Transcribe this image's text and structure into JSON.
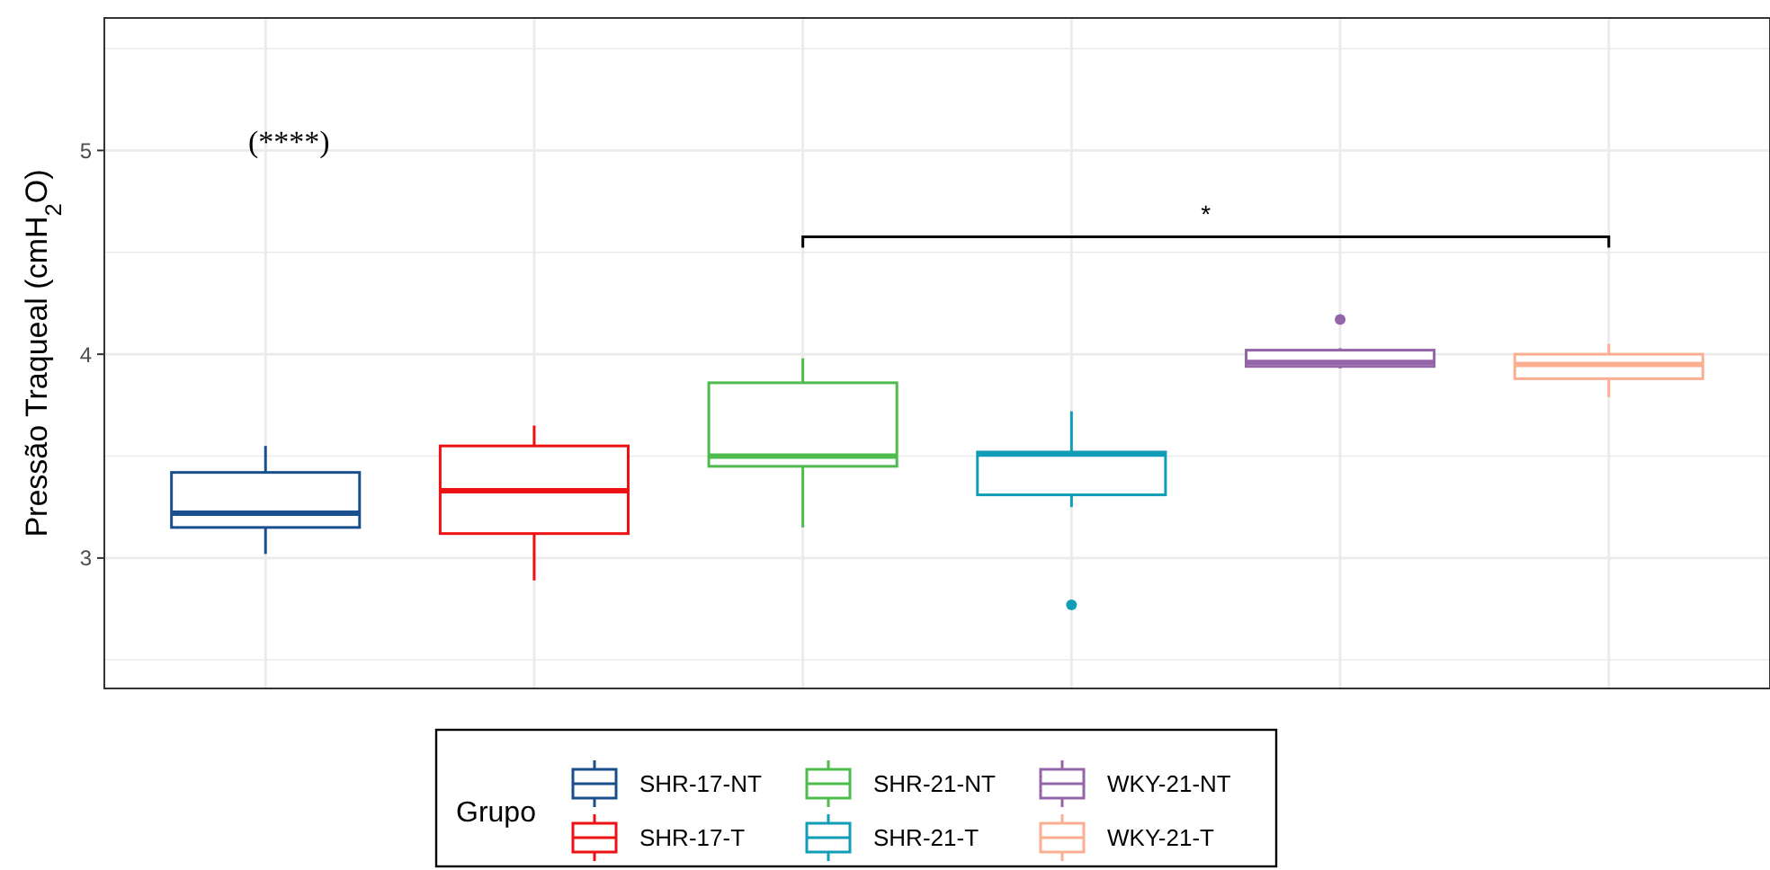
{
  "chart_data": {
    "type": "box",
    "ylabel": "Pressão Traqueal (cmH$_{2}$O)",
    "legend_title": "Grupo",
    "legend": "bottom",
    "grid": true,
    "tick_labels": "y",
    "categories": [
      null,
      null,
      null,
      null,
      null,
      null
    ],
    "ylim": [
      2.36,
      5.65
    ],
    "yticks": [
      {
        "value": 2.5,
        "label": null
      },
      3,
      {
        "value": 3.5,
        "label": null
      },
      4,
      {
        "value": 4.5,
        "label": null
      },
      5,
      {
        "value": 5.5,
        "label": null
      }
    ],
    "series": [
      {
        "name": "SHR-17-NT",
        "color": "#1a4f8e",
        "boxes": [
          {
            "low": 3.02,
            "q1": 3.15,
            "median": 3.22,
            "q3": 3.42,
            "high": 3.55
          },
          null,
          null,
          null,
          null,
          null
        ]
      },
      {
        "name": "SHR-17-T",
        "color": "#ee1111",
        "boxes": [
          null,
          {
            "low": 2.89,
            "q1": 3.12,
            "median": 3.33,
            "q3": 3.55,
            "high": 3.65
          },
          null,
          null,
          null,
          null
        ]
      },
      {
        "name": "SHR-21-NT",
        "color": "#4dbb4d",
        "boxes": [
          null,
          null,
          {
            "low": 3.15,
            "q1": 3.45,
            "median": 3.5,
            "q3": 3.86,
            "high": 3.98
          },
          null,
          null,
          null
        ]
      },
      {
        "name": "SHR-21-T",
        "color": "#119db8",
        "boxes": [
          null,
          null,
          null,
          {
            "low": 3.25,
            "q1": 3.31,
            "median": 3.51,
            "q3": 3.52,
            "high": 3.72,
            "outliers": [
              2.77
            ]
          },
          null,
          null
        ]
      },
      {
        "name": "WKY-21-NT",
        "color": "#9464a8",
        "boxes": [
          null,
          null,
          null,
          null,
          {
            "low": 3.93,
            "q1": 3.94,
            "median": 3.96,
            "q3": 4.02,
            "high": 4.03,
            "outliers": [
              4.17
            ]
          },
          null
        ]
      },
      {
        "name": "WKY-21-T",
        "color": "#fcae91",
        "boxes": [
          null,
          null,
          null,
          null,
          null,
          {
            "low": 3.79,
            "q1": 3.88,
            "median": 3.95,
            "q3": 4.0,
            "high": 4.05
          }
        ]
      }
    ],
    "annotations": [
      "(****)",
      "*"
    ]
  }
}
